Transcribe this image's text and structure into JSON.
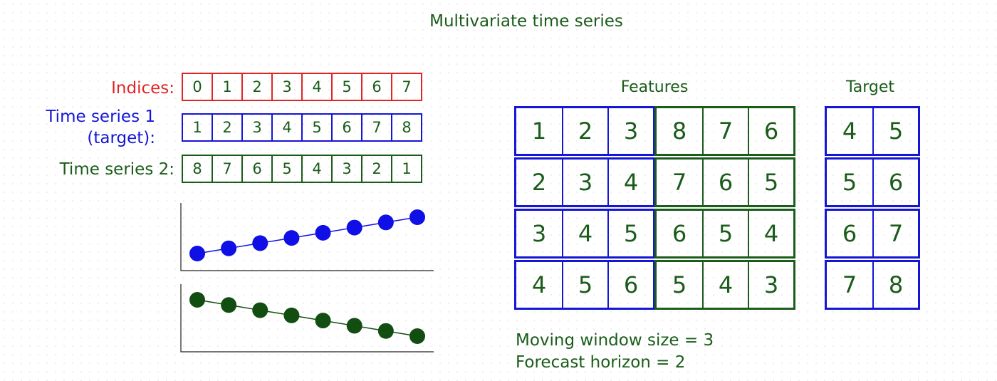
{
  "title": "Multivariate time series",
  "rows": [
    {
      "label": "Indices:",
      "values": [
        "0",
        "1",
        "2",
        "3",
        "4",
        "5",
        "6",
        "7"
      ]
    },
    {
      "label_line1": "Time series 1",
      "label_line2": "(target):",
      "values": [
        "1",
        "2",
        "3",
        "4",
        "5",
        "6",
        "7",
        "8"
      ]
    },
    {
      "label": "Time series 2:",
      "values": [
        "8",
        "7",
        "6",
        "5",
        "4",
        "3",
        "2",
        "1"
      ]
    }
  ],
  "series_plots": [
    {
      "color": "#0f0fe6",
      "values": [
        1,
        2,
        3,
        4,
        5,
        6,
        7,
        8
      ]
    },
    {
      "color": "#124d12",
      "values": [
        8,
        7,
        6,
        5,
        4,
        3,
        2,
        1
      ]
    }
  ],
  "features_heading": "Features",
  "target_heading": "Target",
  "windows": [
    {
      "ts1": [
        "1",
        "2",
        "3"
      ],
      "ts2": [
        "8",
        "7",
        "6"
      ],
      "target": [
        "4",
        "5"
      ]
    },
    {
      "ts1": [
        "2",
        "3",
        "4"
      ],
      "ts2": [
        "7",
        "6",
        "5"
      ],
      "target": [
        "5",
        "6"
      ]
    },
    {
      "ts1": [
        "3",
        "4",
        "5"
      ],
      "ts2": [
        "6",
        "5",
        "4"
      ],
      "target": [
        "6",
        "7"
      ]
    },
    {
      "ts1": [
        "4",
        "5",
        "6"
      ],
      "ts2": [
        "5",
        "4",
        "3"
      ],
      "target": [
        "7",
        "8"
      ]
    }
  ],
  "notes": {
    "window": "Moving window size = 3",
    "horizon": "Forecast horizon = 2"
  },
  "colors": {
    "indices": "#e02525",
    "ts1": "#1515d6",
    "ts2": "#1a5c1a"
  }
}
